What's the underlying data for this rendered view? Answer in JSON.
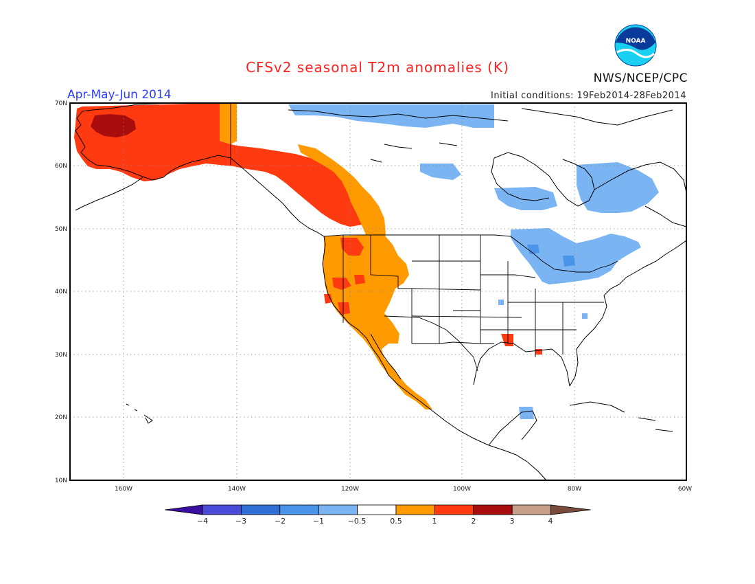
{
  "title": "CFSv2 seasonal T2m anomalies (K)",
  "period": "Apr-May-Jun 2014",
  "initial_conditions": "Initial conditions: 19Feb2014-28Feb2014",
  "agency": "NWS/NCEP/CPC",
  "logo_text": "NOAA",
  "lon_labels": [
    "160W",
    "140W",
    "120W",
    "100W",
    "80W",
    "60W"
  ],
  "lat_labels": [
    "70N",
    "60N",
    "50N",
    "40N",
    "30N",
    "20N",
    "10N"
  ],
  "colorbar": {
    "labels": [
      "−4",
      "−3",
      "−2",
      "−1",
      "−0.5",
      "0.5",
      "1",
      "2",
      "3",
      "4"
    ],
    "colors": [
      "#3a0ea0",
      "#4a4ad8",
      "#2f6fd6",
      "#4a94ea",
      "#7ab4f2",
      "#ffffff",
      "#ff9a00",
      "#ff3a10",
      "#a80c0c",
      "#c8a08a",
      "#7a4a3a"
    ]
  },
  "anomaly_colors": {
    "cool_weak": "#7ab4f2",
    "cool": "#4a94ea",
    "warm_weak": "#ff9a00",
    "warm": "#ff3a10",
    "hot": "#a80c0c"
  }
}
